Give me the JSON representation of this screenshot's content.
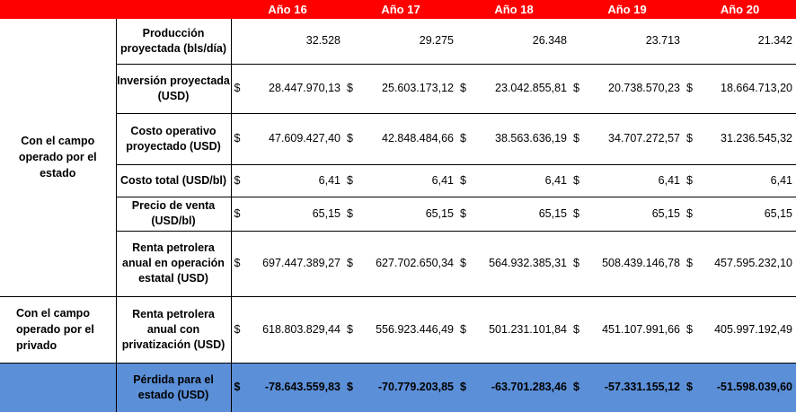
{
  "headers": [
    "Año 16",
    "Año 17",
    "Año 18",
    "Año 19",
    "Año 20"
  ],
  "groups": {
    "estado": "Con el campo operado por el estado",
    "privado": "Con el campo operado por el privado"
  },
  "currency_symbol": "$",
  "rows": [
    {
      "label": "Producción proyectada (bls/día)",
      "currency": false,
      "values": [
        "32.528",
        "29.275",
        "26.348",
        "23.713",
        "21.342"
      ]
    },
    {
      "label": "Inversión proyectada (USD)",
      "currency": true,
      "values": [
        "28.447.970,13",
        "25.603.173,12",
        "23.042.855,81",
        "20.738.570,23",
        "18.664.713,20"
      ]
    },
    {
      "label": "Costo operativo proyectado (USD)",
      "currency": true,
      "values": [
        "47.609.427,40",
        "42.848.484,66",
        "38.563.636,19",
        "34.707.272,57",
        "31.236.545,32"
      ]
    },
    {
      "label": "Costo total (USD/bl)",
      "currency": true,
      "values": [
        "6,41",
        "6,41",
        "6,41",
        "6,41",
        "6,41"
      ]
    },
    {
      "label": "Precio de venta (USD/bl)",
      "currency": true,
      "values": [
        "65,15",
        "65,15",
        "65,15",
        "65,15",
        "65,15"
      ]
    },
    {
      "label": "Renta petrolera anual en operación estatal (USD)",
      "currency": true,
      "values": [
        "697.447.389,27",
        "627.702.650,34",
        "564.932.385,31",
        "508.439.146,78",
        "457.595.232,10"
      ]
    },
    {
      "label": "Renta petrolera anual con privatización (USD)",
      "currency": true,
      "values": [
        "618.803.829,44",
        "556.923.446,49",
        "501.231.101,84",
        "451.107.991,66",
        "405.997.192,49"
      ]
    },
    {
      "label": "Pérdida para el estado (USD)",
      "currency": true,
      "values": [
        "-78.643.559,83",
        "-70.779.203,85",
        "-63.701.283,46",
        "-57.331.155,12",
        "-51.598.039,60"
      ]
    }
  ],
  "colors": {
    "header_bg": "#ff0000",
    "header_text": "#ffffff",
    "loss_bg": "#5b8fd8"
  }
}
